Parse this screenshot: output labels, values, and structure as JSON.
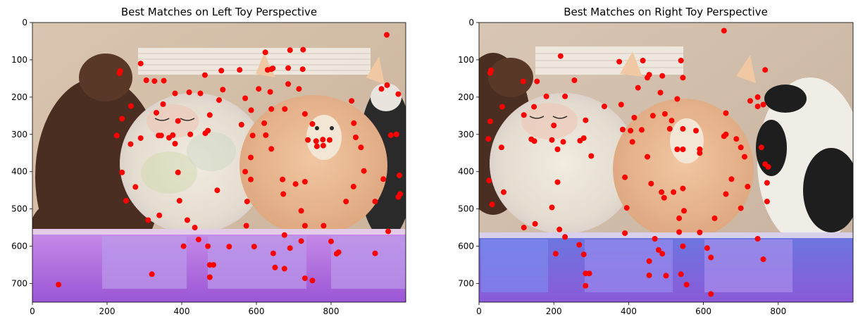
{
  "chart_data": [
    {
      "type": "scatter",
      "title": "Best Matches on Left Toy Perspective",
      "xlabel": "",
      "ylabel": "",
      "xlim": [
        0,
        1000
      ],
      "ylim": [
        750,
        0
      ],
      "xticks": [
        0,
        200,
        400,
        600,
        800
      ],
      "yticks": [
        0,
        100,
        200,
        300,
        400,
        500,
        600,
        700
      ],
      "grid": false,
      "point_color": "#ff0000",
      "background": "photograph of plush toys (llama and fox cushions, teddy bear, panda) on a shelf lit with purple LED light",
      "points": [
        [
          949,
          33
        ],
        [
          690,
          74
        ],
        [
          725,
          73
        ],
        [
          624,
          80
        ],
        [
          290,
          110
        ],
        [
          640,
          125
        ],
        [
          630,
          127
        ],
        [
          644,
          123
        ],
        [
          685,
          122
        ],
        [
          724,
          125
        ],
        [
          235,
          130
        ],
        [
          233,
          136
        ],
        [
          462,
          141
        ],
        [
          506,
          129
        ],
        [
          555,
          127
        ],
        [
          305,
          155
        ],
        [
          327,
          157
        ],
        [
          352,
          156
        ],
        [
          382,
          190
        ],
        [
          420,
          187
        ],
        [
          450,
          190
        ],
        [
          510,
          180
        ],
        [
          606,
          178
        ],
        [
          637,
          186
        ],
        [
          685,
          165
        ],
        [
          714,
          178
        ],
        [
          950,
          168
        ],
        [
          980,
          192
        ],
        [
          935,
          178
        ],
        [
          350,
          219
        ],
        [
          264,
          224
        ],
        [
          332,
          242
        ],
        [
          586,
          235
        ],
        [
          640,
          232
        ],
        [
          676,
          232
        ],
        [
          730,
          245
        ],
        [
          855,
          210
        ],
        [
          240,
          258
        ],
        [
          390,
          264
        ],
        [
          475,
          248
        ],
        [
          500,
          208
        ],
        [
          570,
          203
        ],
        [
          560,
          274
        ],
        [
          621,
          270
        ],
        [
          750,
          272
        ],
        [
          861,
          270
        ],
        [
          338,
          303
        ],
        [
          345,
          303
        ],
        [
          376,
          302
        ],
        [
          366,
          309
        ],
        [
          423,
          300
        ],
        [
          463,
          297
        ],
        [
          470,
          290
        ],
        [
          382,
          325
        ],
        [
          226,
          303
        ],
        [
          263,
          326
        ],
        [
          290,
          310
        ],
        [
          590,
          303
        ],
        [
          625,
          302
        ],
        [
          640,
          339
        ],
        [
          738,
          315
        ],
        [
          760,
          318
        ],
        [
          778,
          314
        ],
        [
          796,
          315
        ],
        [
          762,
          332
        ],
        [
          779,
          330
        ],
        [
          866,
          308
        ],
        [
          880,
          335
        ],
        [
          960,
          302
        ],
        [
          975,
          300
        ],
        [
          585,
          362
        ],
        [
          570,
          400
        ],
        [
          585,
          421
        ],
        [
          670,
          421
        ],
        [
          705,
          433
        ],
        [
          730,
          427
        ],
        [
          672,
          460
        ],
        [
          860,
          440
        ],
        [
          888,
          398
        ],
        [
          940,
          420
        ],
        [
          983,
          410
        ],
        [
          985,
          460
        ],
        [
          980,
          468
        ],
        [
          240,
          402
        ],
        [
          390,
          402
        ],
        [
          276,
          441
        ],
        [
          251,
          478
        ],
        [
          394,
          478
        ],
        [
          495,
          450
        ],
        [
          575,
          480
        ],
        [
          840,
          480
        ],
        [
          918,
          480
        ],
        [
          720,
          505
        ],
        [
          340,
          517
        ],
        [
          415,
          530
        ],
        [
          573,
          545
        ],
        [
          730,
          545
        ],
        [
          780,
          545
        ],
        [
          953,
          560
        ],
        [
          310,
          530
        ],
        [
          435,
          550
        ],
        [
          445,
          582
        ],
        [
          405,
          600
        ],
        [
          470,
          600
        ],
        [
          527,
          601
        ],
        [
          594,
          601
        ],
        [
          675,
          570
        ],
        [
          720,
          586
        ],
        [
          800,
          587
        ],
        [
          645,
          619
        ],
        [
          690,
          605
        ],
        [
          820,
          616
        ],
        [
          815,
          620
        ],
        [
          918,
          619
        ],
        [
          475,
          650
        ],
        [
          485,
          650
        ],
        [
          650,
          657
        ],
        [
          675,
          660
        ],
        [
          320,
          675
        ],
        [
          475,
          683
        ],
        [
          730,
          686
        ],
        [
          750,
          692
        ],
        [
          70,
          703
        ]
      ]
    },
    {
      "type": "scatter",
      "title": "Best Matches on Right Toy Perspective",
      "xlabel": "",
      "ylabel": "",
      "xlim": [
        0,
        1000
      ],
      "ylim": [
        750,
        0
      ],
      "xticks": [
        0,
        200,
        400,
        600,
        800
      ],
      "yticks": [
        0,
        100,
        200,
        300,
        400,
        500,
        600,
        700
      ],
      "grid": false,
      "point_color": "#ff0000",
      "background": "photograph of plush toys (llama and fox cushions, teddy bear, panda) on a shelf lit with blue and purple LED light",
      "points": [
        [
          655,
          22
        ],
        [
          218,
          90
        ],
        [
          375,
          105
        ],
        [
          438,
          102
        ],
        [
          540,
          102
        ],
        [
          765,
          127
        ],
        [
          32,
          128
        ],
        [
          30,
          135
        ],
        [
          455,
          140
        ],
        [
          450,
          148
        ],
        [
          490,
          143
        ],
        [
          545,
          148
        ],
        [
          118,
          158
        ],
        [
          155,
          158
        ],
        [
          255,
          155
        ],
        [
          180,
          198
        ],
        [
          230,
          198
        ],
        [
          335,
          225
        ],
        [
          380,
          220
        ],
        [
          425,
          175
        ],
        [
          485,
          188
        ],
        [
          530,
          205
        ],
        [
          725,
          210
        ],
        [
          745,
          200
        ],
        [
          760,
          220
        ],
        [
          745,
          225
        ],
        [
          62,
          226
        ],
        [
          147,
          226
        ],
        [
          120,
          248
        ],
        [
          415,
          255
        ],
        [
          465,
          250
        ],
        [
          497,
          245
        ],
        [
          515,
          263
        ],
        [
          285,
          262
        ],
        [
          30,
          265
        ],
        [
          200,
          276
        ],
        [
          25,
          312
        ],
        [
          225,
          320
        ],
        [
          140,
          313
        ],
        [
          148,
          318
        ],
        [
          195,
          315
        ],
        [
          270,
          317
        ],
        [
          280,
          310
        ],
        [
          384,
          287
        ],
        [
          405,
          290
        ],
        [
          410,
          320
        ],
        [
          435,
          288
        ],
        [
          510,
          285
        ],
        [
          545,
          285
        ],
        [
          580,
          290
        ],
        [
          660,
          300
        ],
        [
          655,
          305
        ],
        [
          688,
          312
        ],
        [
          660,
          243
        ],
        [
          700,
          335
        ],
        [
          710,
          360
        ],
        [
          755,
          335
        ],
        [
          765,
          380
        ],
        [
          773,
          387
        ],
        [
          770,
          430
        ],
        [
          770,
          480
        ],
        [
          718,
          440
        ],
        [
          675,
          420
        ],
        [
          660,
          460
        ],
        [
          210,
          340
        ],
        [
          300,
          358
        ],
        [
          450,
          360
        ],
        [
          530,
          340
        ],
        [
          545,
          340
        ],
        [
          590,
          340
        ],
        [
          590,
          350
        ],
        [
          60,
          335
        ],
        [
          27,
          424
        ],
        [
          66,
          455
        ],
        [
          35,
          488
        ],
        [
          210,
          428
        ],
        [
          390,
          415
        ],
        [
          395,
          497
        ],
        [
          460,
          432
        ],
        [
          488,
          455
        ],
        [
          520,
          455
        ],
        [
          545,
          445
        ],
        [
          495,
          470
        ],
        [
          390,
          565
        ],
        [
          195,
          496
        ],
        [
          120,
          550
        ],
        [
          150,
          540
        ],
        [
          215,
          555
        ],
        [
          230,
          575
        ],
        [
          268,
          596
        ],
        [
          205,
          620
        ],
        [
          535,
          525
        ],
        [
          548,
          505
        ],
        [
          535,
          562
        ],
        [
          590,
          563
        ],
        [
          630,
          525
        ],
        [
          700,
          498
        ],
        [
          745,
          580
        ],
        [
          760,
          635
        ],
        [
          620,
          630
        ],
        [
          610,
          605
        ],
        [
          545,
          600
        ],
        [
          480,
          610
        ],
        [
          470,
          580
        ],
        [
          455,
          640
        ],
        [
          490,
          620
        ],
        [
          455,
          678
        ],
        [
          500,
          679
        ],
        [
          540,
          675
        ],
        [
          555,
          703
        ],
        [
          285,
          673
        ],
        [
          295,
          673
        ],
        [
          285,
          706
        ],
        [
          280,
          622
        ],
        [
          620,
          728
        ]
      ]
    }
  ]
}
